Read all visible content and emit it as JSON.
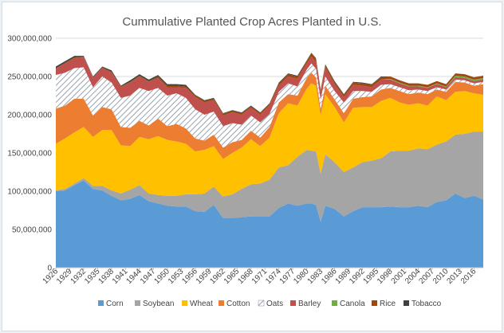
{
  "chart_data": {
    "type": "area",
    "stacked": true,
    "title": "Cummulative Planted Crop Acres Planted in U.S.",
    "ylim": [
      0,
      300000000
    ],
    "y_ticks": [
      0,
      50000000,
      100000000,
      150000000,
      200000000,
      250000000,
      300000000
    ],
    "y_tick_labels": [
      "0",
      "50,000,000",
      "100,000,000",
      "150,000,000",
      "200,000,000",
      "250,000,000",
      "300,000,000"
    ],
    "x_tick_labels": [
      "1926",
      "1929",
      "1932",
      "1935",
      "1938",
      "1941",
      "1944",
      "1947",
      "1950",
      "1953",
      "1956",
      "1959",
      "1962",
      "1965",
      "1968",
      "1971",
      "1974",
      "1977",
      "1980",
      "1983",
      "1986",
      "1989",
      "1992",
      "1995",
      "1998",
      "2001",
      "2004",
      "2007",
      "2010",
      "2013",
      "2016"
    ],
    "legend_position": "bottom",
    "x": [
      1926,
      1928,
      1930,
      1932,
      1934,
      1936,
      1938,
      1940,
      1942,
      1944,
      1946,
      1948,
      1950,
      1952,
      1954,
      1956,
      1958,
      1960,
      1962,
      1964,
      1966,
      1968,
      1970,
      1972,
      1974,
      1976,
      1978,
      1980,
      1981,
      1982,
      1983,
      1984,
      1986,
      1988,
      1990,
      1992,
      1994,
      1996,
      1998,
      2000,
      2002,
      2004,
      2006,
      2008,
      2010,
      2012,
      2014,
      2016,
      2018
    ],
    "series": [
      {
        "name": "Corn",
        "color": "#5b9bd5",
        "values": [
          100,
          101,
          108,
          114,
          103,
          101,
          94,
          88,
          90,
          95,
          87,
          84,
          81,
          80,
          80,
          74,
          73,
          82,
          65,
          65,
          66,
          67,
          67,
          67,
          78,
          84,
          81,
          84,
          84,
          82,
          60,
          81,
          77,
          67,
          74,
          79,
          79,
          79,
          80,
          79,
          79,
          81,
          79,
          86,
          88,
          97,
          91,
          94,
          89
        ]
      },
      {
        "name": "Soybean",
        "color": "#a5a5a5",
        "values": [
          1,
          2,
          2,
          3,
          4,
          6,
          7,
          9,
          12,
          13,
          10,
          11,
          13,
          14,
          16,
          22,
          24,
          24,
          28,
          31,
          37,
          42,
          43,
          48,
          53,
          50,
          64,
          70,
          69,
          70,
          63,
          67,
          61,
          58,
          57,
          59,
          61,
          64,
          72,
          74,
          74,
          75,
          76,
          75,
          77,
          77,
          84,
          84,
          89
        ]
      },
      {
        "name": "Wheat",
        "color": "#ffc000",
        "values": [
          61,
          66,
          67,
          67,
          64,
          73,
          79,
          63,
          57,
          63,
          71,
          77,
          73,
          71,
          66,
          56,
          57,
          53,
          49,
          54,
          54,
          59,
          49,
          55,
          71,
          81,
          67,
          80,
          88,
          86,
          76,
          79,
          72,
          65,
          78,
          72,
          70,
          75,
          70,
          63,
          60,
          59,
          57,
          63,
          54,
          56,
          56,
          50,
          48
        ]
      },
      {
        "name": "Cotton",
        "color": "#ed7d31",
        "values": [
          46,
          43,
          44,
          37,
          28,
          30,
          27,
          24,
          24,
          21,
          18,
          23,
          18,
          23,
          20,
          17,
          12,
          15,
          15,
          14,
          10,
          11,
          11,
          14,
          14,
          12,
          13,
          14,
          14,
          11,
          8,
          11,
          10,
          12,
          12,
          13,
          14,
          15,
          13,
          15,
          14,
          14,
          15,
          9,
          11,
          13,
          11,
          10,
          14
        ]
      },
      {
        "name": "Oats",
        "color": "#ffffff",
        "hatch": "#7f8c99",
        "values": [
          44,
          43,
          40,
          41,
          37,
          40,
          35,
          38,
          42,
          43,
          45,
          40,
          40,
          40,
          40,
          38,
          34,
          30,
          28,
          25,
          20,
          20,
          20,
          17,
          14,
          14,
          12,
          11,
          12,
          11,
          13,
          12,
          11,
          14,
          10,
          8,
          6,
          6,
          5,
          5,
          5,
          4,
          4,
          3,
          3,
          3,
          3,
          3,
          3
        ]
      },
      {
        "name": "Barley",
        "color": "#c0504d",
        "values": [
          8,
          12,
          13,
          13,
          12,
          11,
          13,
          14,
          17,
          15,
          12,
          13,
          11,
          8,
          13,
          16,
          16,
          15,
          14,
          14,
          13,
          10,
          10,
          11,
          8,
          9,
          10,
          8,
          9,
          9,
          10,
          12,
          9,
          7,
          8,
          7,
          6,
          7,
          6,
          5,
          5,
          4,
          4,
          4,
          3,
          3,
          3,
          3,
          3
        ]
      },
      {
        "name": "Canola",
        "color": "#70ad47",
        "values": [
          0,
          0,
          0,
          0,
          0,
          0,
          0,
          0,
          0,
          0,
          0,
          0,
          0,
          0,
          0,
          0,
          0,
          0,
          0,
          0,
          0,
          0,
          0,
          0,
          0,
          0,
          0,
          0,
          0,
          0,
          0,
          0,
          0,
          0,
          0,
          0,
          0,
          0,
          1,
          1,
          1,
          1,
          1,
          1,
          1,
          2,
          2,
          2,
          2
        ]
      },
      {
        "name": "Rice",
        "color": "#9e480e",
        "values": [
          1,
          1,
          1,
          1,
          1,
          1,
          1,
          1,
          1,
          1,
          1,
          2,
          2,
          2,
          2,
          2,
          2,
          2,
          2,
          2,
          2,
          2,
          2,
          2,
          3,
          3,
          3,
          3,
          4,
          4,
          2,
          3,
          3,
          3,
          3,
          3,
          3,
          3,
          3,
          3,
          3,
          3,
          3,
          3,
          3,
          3,
          3,
          3,
          3
        ]
      },
      {
        "name": "Tobacco",
        "color": "#404040",
        "values": [
          2,
          2,
          2,
          1,
          1,
          1,
          2,
          1,
          2,
          2,
          2,
          2,
          2,
          2,
          2,
          1,
          1,
          1,
          1,
          1,
          1,
          1,
          1,
          1,
          1,
          1,
          1,
          1,
          1,
          1,
          1,
          1,
          1,
          1,
          1,
          1,
          1,
          1,
          0,
          0,
          0,
          0,
          0,
          0,
          0,
          0,
          0,
          0,
          0
        ]
      }
    ],
    "value_unit_multiplier": 1000000
  }
}
